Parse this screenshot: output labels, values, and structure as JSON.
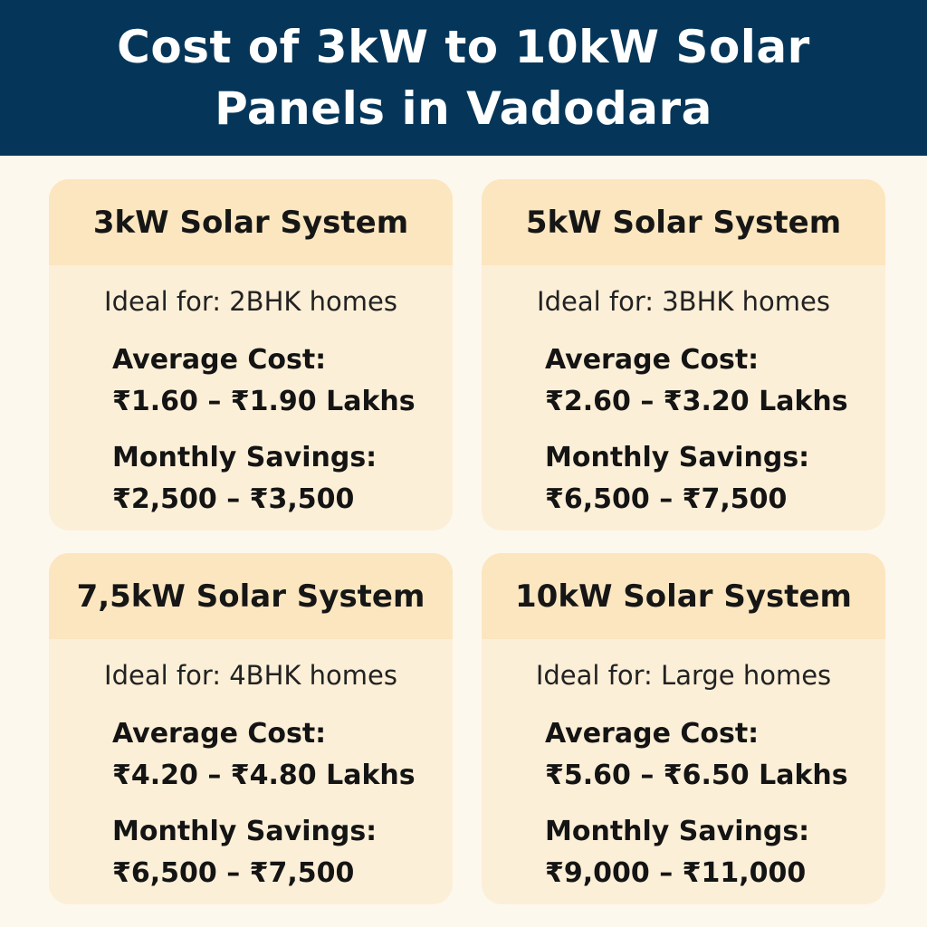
{
  "header": {
    "title": "Cost of 3kW to 10kW Solar Panels in Vadodara"
  },
  "cards": [
    {
      "title": "3kW Solar System",
      "ideal_for": "Ideal for: 2BHK homes",
      "average_cost_label": "Average Cost:",
      "average_cost": "₹1.60 – ₹1.90 Lakhs",
      "monthly_savings_label": "Monthly Savings:",
      "monthly_savings": "₹2,500 – ₹3,500"
    },
    {
      "title": "5kW Solar System",
      "ideal_for": "Ideal for: 3BHK homes",
      "average_cost_label": "Average Cost:",
      "average_cost": "₹2.60 – ₹3.20 Lakhs",
      "monthly_savings_label": "Monthly Savings:",
      "monthly_savings": "₹6,500 – ₹7,500"
    },
    {
      "title": "7,5kW Solar System",
      "ideal_for": "Ideal for: 4BHK homes",
      "average_cost_label": "Average Cost:",
      "average_cost": "₹4.20 – ₹4.80 Lakhs",
      "monthly_savings_label": "Monthly Savings:",
      "monthly_savings": "₹6,500 – ₹7,500"
    },
    {
      "title": "10kW Solar System",
      "ideal_for": "Ideal for: Large homes",
      "average_cost_label": "Average Cost:",
      "average_cost": "₹5.60 – ₹6.50 Lakhs",
      "monthly_savings_label": "Monthly Savings:",
      "monthly_savings": "₹9,000 – ₹11,000"
    }
  ],
  "colors": {
    "header_bg": "#053659",
    "header_text": "#ffffff",
    "page_bg": "#fdf8ee",
    "card_bg": "#fcefd7",
    "card_head_bg": "#fce6bf",
    "text": "#141414"
  }
}
